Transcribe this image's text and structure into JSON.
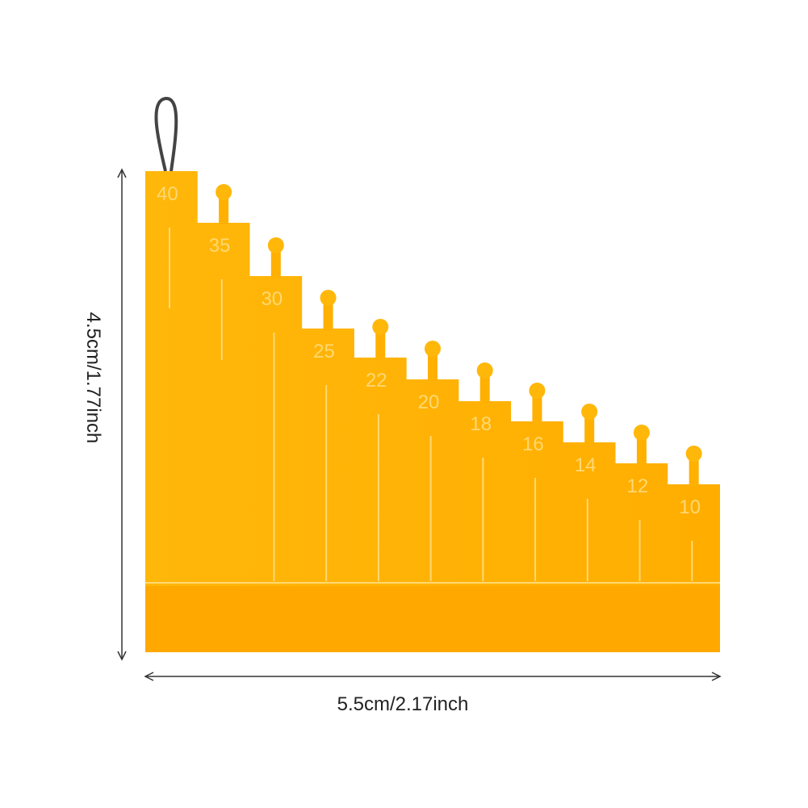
{
  "steps": [
    40,
    35,
    30,
    25,
    22,
    20,
    18,
    16,
    14,
    12,
    10
  ],
  "height_label": "4.5cm/1.77inch",
  "width_label": "5.5cm/2.17inch"
}
